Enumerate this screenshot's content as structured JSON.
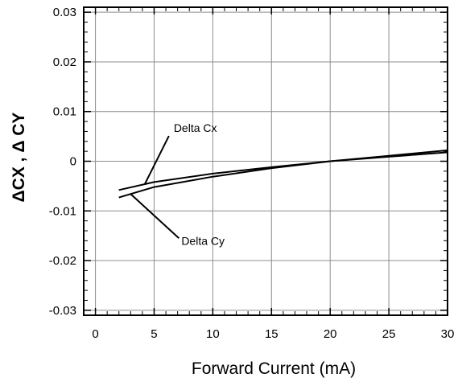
{
  "chart_data": {
    "type": "line",
    "title": "",
    "xlabel": "Forward Current (mA)",
    "ylabel": "ΔCX , Δ CY",
    "xlim": [
      -1,
      30
    ],
    "ylim": [
      -0.031,
      0.031
    ],
    "x_ticks": [
      "0",
      "5",
      "10",
      "15",
      "20",
      "25",
      "30"
    ],
    "y_ticks": [
      "-0.03",
      "-0.02",
      "-0.01",
      "0",
      "0.01",
      "0.02",
      "0.03"
    ],
    "grid": true,
    "series": [
      {
        "name": "Delta Cx",
        "x": [
          2,
          5,
          10,
          15,
          20,
          25,
          30
        ],
        "y": [
          -0.0058,
          -0.0042,
          -0.0025,
          -0.0012,
          0.0,
          0.0009,
          0.0018
        ]
      },
      {
        "name": "Delta Cy",
        "x": [
          2,
          5,
          10,
          15,
          20,
          25,
          30
        ],
        "y": [
          -0.0073,
          -0.0052,
          -0.0031,
          -0.0014,
          0.0,
          0.0011,
          0.0022
        ]
      }
    ],
    "annotations": [
      {
        "text": "Delta Cx",
        "series": 0,
        "at_x": 4.2
      },
      {
        "text": "Delta Cy",
        "series": 1,
        "at_x": 3.0
      }
    ]
  }
}
